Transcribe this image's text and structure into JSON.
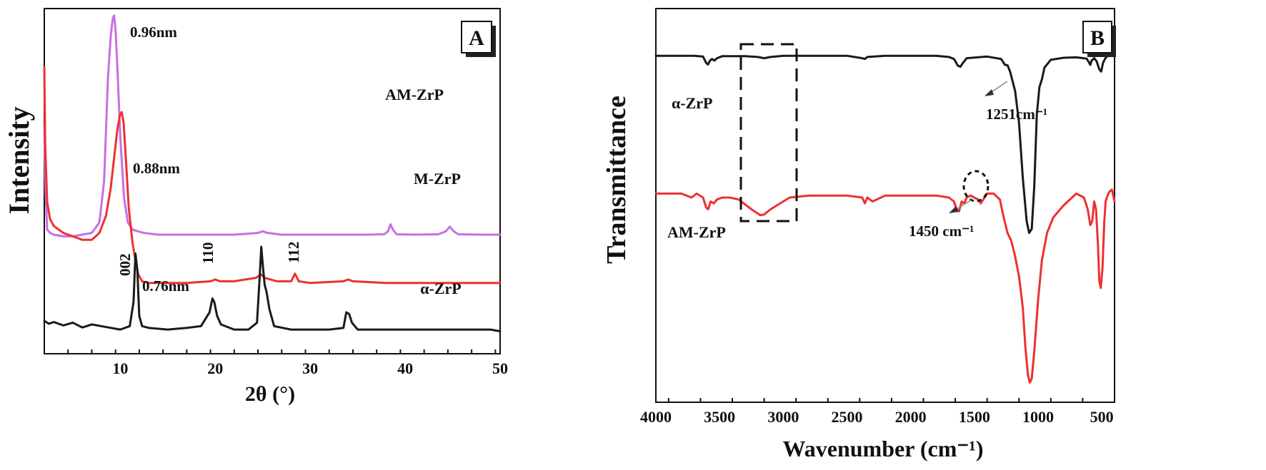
{
  "chart_data": [
    {
      "panel": "A",
      "type": "line",
      "xlabel": "2θ (°)",
      "ylabel": "Intensity",
      "xlim": [
        2,
        50
      ],
      "xticks": [
        "10",
        "20",
        "30",
        "40",
        "50"
      ],
      "grid": false,
      "series": [
        {
          "name": "AM-ZrP",
          "color": "#c86ee6",
          "x": [
            2.0,
            2.1,
            2.3,
            2.6,
            3.0,
            4.0,
            5.0,
            6.0,
            7.0,
            7.8,
            8.3,
            8.7,
            9.0,
            9.2,
            9.35,
            9.5,
            9.7,
            10.0,
            10.4,
            10.8,
            11.3,
            11.8,
            12.5,
            14,
            16,
            18,
            20,
            22,
            23.5,
            24.5,
            25.0,
            25.5,
            27,
            30,
            33,
            36,
            37.8,
            38.2,
            38.45,
            38.7,
            39.1,
            41,
            43.5,
            44.3,
            44.7,
            45.1,
            45.6,
            48,
            50
          ],
          "y": [
            0.66,
            0.5,
            0.36,
            0.35,
            0.345,
            0.34,
            0.34,
            0.345,
            0.35,
            0.38,
            0.5,
            0.8,
            0.92,
            0.97,
            0.98,
            0.94,
            0.83,
            0.63,
            0.45,
            0.38,
            0.36,
            0.355,
            0.35,
            0.345,
            0.345,
            0.345,
            0.345,
            0.345,
            0.348,
            0.35,
            0.355,
            0.35,
            0.345,
            0.345,
            0.345,
            0.345,
            0.346,
            0.355,
            0.375,
            0.36,
            0.346,
            0.345,
            0.346,
            0.355,
            0.368,
            0.355,
            0.346,
            0.345,
            0.345
          ]
        },
        {
          "name": "M-ZrP",
          "color": "#ee3030",
          "x": [
            2.0,
            2.1,
            2.3,
            2.6,
            3.0,
            4.0,
            5.0,
            6.0,
            7.0,
            7.8,
            8.5,
            9.0,
            9.4,
            9.7,
            9.95,
            10.15,
            10.35,
            10.6,
            10.9,
            11.3,
            11.6,
            11.9,
            12.3,
            13,
            15,
            17,
            19.5,
            20,
            20.5,
            22,
            24.3,
            24.8,
            25.2,
            26.5,
            28.0,
            28.4,
            28.8,
            30,
            33.5,
            34,
            34.5,
            38,
            42,
            46,
            50
          ],
          "y": [
            0.83,
            0.6,
            0.44,
            0.39,
            0.37,
            0.35,
            0.34,
            0.33,
            0.33,
            0.35,
            0.4,
            0.48,
            0.58,
            0.65,
            0.69,
            0.7,
            0.67,
            0.56,
            0.42,
            0.32,
            0.27,
            0.23,
            0.21,
            0.205,
            0.205,
            0.205,
            0.21,
            0.215,
            0.21,
            0.21,
            0.22,
            0.23,
            0.22,
            0.21,
            0.21,
            0.232,
            0.21,
            0.205,
            0.21,
            0.215,
            0.21,
            0.205,
            0.205,
            0.205,
            0.205
          ]
        },
        {
          "name": "α-ZrP",
          "color": "#1a1a1a",
          "x": [
            2.0,
            2.5,
            3,
            4,
            5,
            6,
            7,
            8,
            9,
            10,
            11.0,
            11.4,
            11.6,
            11.8,
            12.0,
            12.3,
            13,
            15,
            17,
            18.5,
            19.4,
            19.7,
            19.9,
            20.2,
            20.6,
            22,
            23.5,
            24.4,
            24.7,
            24.85,
            25.0,
            25.2,
            25.4,
            25.7,
            26.2,
            28,
            30,
            32,
            33.5,
            33.8,
            34.1,
            34.4,
            35,
            37,
            39,
            41,
            43,
            45,
            47,
            49,
            50
          ],
          "y": [
            0.095,
            0.087,
            0.092,
            0.082,
            0.09,
            0.076,
            0.085,
            0.08,
            0.075,
            0.07,
            0.08,
            0.15,
            0.29,
            0.24,
            0.11,
            0.08,
            0.075,
            0.07,
            0.075,
            0.08,
            0.12,
            0.16,
            0.15,
            0.11,
            0.085,
            0.07,
            0.07,
            0.09,
            0.23,
            0.31,
            0.26,
            0.2,
            0.18,
            0.13,
            0.08,
            0.07,
            0.07,
            0.07,
            0.075,
            0.12,
            0.115,
            0.09,
            0.07,
            0.07,
            0.07,
            0.07,
            0.07,
            0.07,
            0.07,
            0.07,
            0.065
          ]
        }
      ],
      "annotations": [
        "0.96nm",
        "0.88nm",
        "0.76nm",
        "002",
        "110",
        "112"
      ],
      "series_labels": [
        "AM-ZrP",
        "M-ZrP",
        "α-ZrP"
      ],
      "panel_label": "A"
    },
    {
      "panel": "B",
      "type": "line",
      "xlabel": "Wavenumber (cm⁻¹)",
      "ylabel": "Transmittance",
      "xlim": [
        4000,
        400
      ],
      "xticks": [
        "4000",
        "3500",
        "3000",
        "2500",
        "2000",
        "1500",
        "1000",
        "500"
      ],
      "grid": false,
      "series": [
        {
          "name": "α-ZrP",
          "color": "#1a1a1a",
          "x": [
            4000,
            3800,
            3700,
            3630,
            3605,
            3590,
            3575,
            3560,
            3540,
            3520,
            3480,
            3300,
            3200,
            3150,
            3100,
            3000,
            2800,
            2500,
            2380,
            2360,
            2340,
            2200,
            2000,
            1800,
            1700,
            1660,
            1630,
            1610,
            1590,
            1560,
            1400,
            1290,
            1260,
            1240,
            1220,
            1180,
            1150,
            1120,
            1090,
            1070,
            1050,
            1030,
            1010,
            990,
            970,
            950,
            900,
            800,
            700,
            620,
            600,
            590,
            580,
            560,
            540,
            520,
            505,
            490,
            470,
            450,
            400
          ],
          "y": [
            0.88,
            0.88,
            0.88,
            0.878,
            0.862,
            0.858,
            0.868,
            0.872,
            0.868,
            0.874,
            0.879,
            0.879,
            0.877,
            0.874,
            0.877,
            0.88,
            0.88,
            0.88,
            0.874,
            0.872,
            0.877,
            0.88,
            0.88,
            0.88,
            0.877,
            0.872,
            0.855,
            0.852,
            0.862,
            0.874,
            0.878,
            0.872,
            0.857,
            0.856,
            0.84,
            0.79,
            0.71,
            0.57,
            0.46,
            0.43,
            0.44,
            0.55,
            0.73,
            0.8,
            0.82,
            0.85,
            0.87,
            0.875,
            0.876,
            0.873,
            0.863,
            0.857,
            0.868,
            0.874,
            0.866,
            0.846,
            0.84,
            0.862,
            0.875,
            0.88,
            0.885
          ]
        },
        {
          "name": "AM-ZrP",
          "color": "#ee3030",
          "x": [
            4000,
            3800,
            3720,
            3680,
            3630,
            3605,
            3590,
            3570,
            3545,
            3520,
            3480,
            3420,
            3350,
            3250,
            3180,
            3150,
            3100,
            3000,
            2950,
            2800,
            2500,
            2380,
            2360,
            2340,
            2300,
            2200,
            2000,
            1800,
            1700,
            1660,
            1640,
            1620,
            1600,
            1580,
            1560,
            1530,
            1500,
            1470,
            1450,
            1430,
            1400,
            1350,
            1300,
            1270,
            1240,
            1210,
            1180,
            1150,
            1120,
            1100,
            1080,
            1065,
            1050,
            1030,
            1000,
            970,
            930,
            880,
            800,
            700,
            640,
            610,
            590,
            575,
            560,
            545,
            530,
            520,
            508,
            495,
            480,
            470,
            455,
            440,
            420,
            400
          ],
          "y": [
            0.53,
            0.53,
            0.52,
            0.53,
            0.52,
            0.495,
            0.49,
            0.51,
            0.505,
            0.515,
            0.52,
            0.52,
            0.515,
            0.49,
            0.475,
            0.477,
            0.49,
            0.51,
            0.52,
            0.525,
            0.525,
            0.52,
            0.505,
            0.52,
            0.51,
            0.525,
            0.525,
            0.525,
            0.52,
            0.51,
            0.49,
            0.485,
            0.51,
            0.505,
            0.52,
            0.525,
            0.52,
            0.515,
            0.505,
            0.515,
            0.53,
            0.53,
            0.515,
            0.47,
            0.43,
            0.41,
            0.37,
            0.32,
            0.24,
            0.14,
            0.07,
            0.05,
            0.06,
            0.13,
            0.26,
            0.36,
            0.43,
            0.47,
            0.5,
            0.53,
            0.52,
            0.49,
            0.45,
            0.46,
            0.51,
            0.49,
            0.4,
            0.31,
            0.29,
            0.34,
            0.46,
            0.51,
            0.525,
            0.535,
            0.54,
            0.51
          ]
        }
      ],
      "annotations": [
        "1251cm⁻¹",
        "1450 cm⁻¹"
      ],
      "series_labels": [
        "α-ZrP",
        "AM-ZrP"
      ],
      "panel_label": "B"
    }
  ]
}
